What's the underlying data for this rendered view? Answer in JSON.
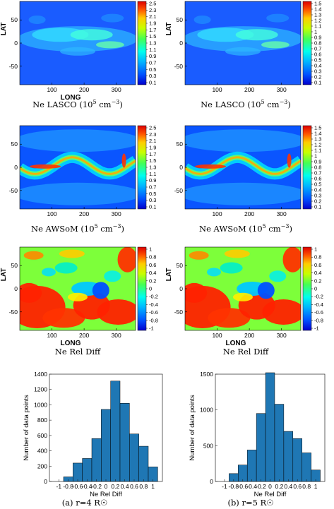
{
  "chart_data": [
    {
      "type": "heatmap",
      "id": "lasco4",
      "xlabel": "LONG",
      "ylabel": "LAT",
      "caption_main": "Ne LASCO",
      "caption_unit": "(10",
      "caption_exp": "5",
      "caption_tail": " cm",
      "caption_exp2": "−3",
      "caption_close": ")",
      "xticks": [
        "100",
        "200",
        "300"
      ],
      "yticks": [
        "50",
        "0",
        "-50"
      ],
      "xlim": [
        0,
        360
      ],
      "ylim": [
        -90,
        90
      ],
      "colorbar": [
        "2.5",
        "2.3",
        "2.1",
        "1.9",
        "1.7",
        "1.5",
        "1.3",
        "1.1",
        "0.9",
        "0.7",
        "0.5",
        "0.3",
        "0.1"
      ]
    },
    {
      "type": "heatmap",
      "id": "lasco5",
      "xlabel": "",
      "ylabel": "LAT",
      "caption_main": "Ne LASCO",
      "caption_unit": "(10",
      "caption_exp": "5",
      "caption_tail": " cm",
      "caption_exp2": "−3",
      "caption_close": ")",
      "xticks": [
        "100",
        "200",
        "300"
      ],
      "yticks": [
        "50",
        "0",
        "-50"
      ],
      "xlim": [
        0,
        360
      ],
      "ylim": [
        -90,
        90
      ],
      "colorbar": [
        "1.5",
        "1.4",
        "1.3",
        "1.2",
        "1.1",
        "1",
        "0.9",
        "0.8",
        "0.7",
        "0.6",
        "0.5",
        "0.4",
        "0.3",
        "0.2",
        "0.1"
      ]
    },
    {
      "type": "heatmap",
      "id": "awsom4",
      "xlabel": "",
      "ylabel": "",
      "caption_main": "Ne AWSoM",
      "caption_unit": "(10",
      "caption_exp": "5",
      "caption_tail": " cm",
      "caption_exp2": "−3",
      "caption_close": ")",
      "xticks": [
        "100",
        "200",
        "300"
      ],
      "yticks": [
        "50",
        "0",
        "-50"
      ],
      "xlim": [
        0,
        360
      ],
      "ylim": [
        -90,
        90
      ],
      "colorbar": [
        "2.5",
        "2.3",
        "2.1",
        "1.9",
        "1.7",
        "1.5",
        "1.3",
        "1.1",
        "0.9",
        "0.7",
        "0.5",
        "0.3",
        "0.1"
      ]
    },
    {
      "type": "heatmap",
      "id": "awsom5",
      "xlabel": "",
      "ylabel": "",
      "caption_main": "Ne AWSoM",
      "caption_unit": "(10",
      "caption_exp": "5",
      "caption_tail": " cm",
      "caption_exp2": "−3",
      "caption_close": ")",
      "xticks": [
        "100",
        "200",
        "300"
      ],
      "yticks": [
        "50",
        "0",
        "-50"
      ],
      "xlim": [
        0,
        360
      ],
      "ylim": [
        -90,
        90
      ],
      "colorbar": [
        "1.5",
        "1.4",
        "1.3",
        "1.2",
        "1.1",
        "1",
        "0.9",
        "0.8",
        "0.7",
        "0.6",
        "0.5",
        "0.4",
        "0.3",
        "0.2",
        "0.1"
      ]
    },
    {
      "type": "heatmap",
      "id": "rel4",
      "xlabel": "LONG",
      "ylabel": "LAT",
      "caption_main": "Ne Rel Diff",
      "xticks": [
        "100",
        "200",
        "300"
      ],
      "yticks": [
        "50",
        "0",
        "-50"
      ],
      "xlim": [
        0,
        360
      ],
      "ylim": [
        -90,
        90
      ],
      "colorbar": [
        "1",
        "0.8",
        "0.6",
        "0.4",
        "0.2",
        "0",
        "-0.2",
        "-0.4",
        "-0.6",
        "-0.8",
        "-1"
      ]
    },
    {
      "type": "heatmap",
      "id": "rel5",
      "xlabel": "LONG",
      "ylabel": "LAT",
      "caption_main": "Ne Rel Diff",
      "xticks": [
        "100",
        "200",
        "300"
      ],
      "yticks": [
        "50",
        "0",
        "-50"
      ],
      "xlim": [
        0,
        360
      ],
      "ylim": [
        -90,
        90
      ],
      "colorbar": [
        "1",
        "0.8",
        "0.6",
        "0.4",
        "0.2",
        "0",
        "-0.2",
        "-0.4",
        "-0.6",
        "-0.8",
        "-1"
      ]
    },
    {
      "type": "bar",
      "id": "hist4",
      "caption": "(a) r=4 R☉",
      "xlabel": "Ne Rel Diff",
      "ylabel": "Number of data points",
      "categories": [
        -0.8,
        -0.6,
        -0.4,
        -0.2,
        0,
        0.2,
        0.4,
        0.6,
        0.8,
        1
      ],
      "values": [
        60,
        240,
        300,
        560,
        940,
        1310,
        1020,
        620,
        460,
        190
      ],
      "xticks": [
        "-1",
        "-0.8",
        "-0.6",
        "-0.4",
        "-0.2",
        "0",
        "0.2",
        "0.4",
        "0.6",
        "0.8",
        "1"
      ],
      "xlim": [
        -1.2,
        1.2
      ],
      "ylim": [
        0,
        1400
      ],
      "yticks": [
        "0",
        "200",
        "400",
        "600",
        "800",
        "1000",
        "1200",
        "1400"
      ],
      "bar_color": "#1f77b4"
    },
    {
      "type": "bar",
      "id": "hist5",
      "caption": "(b) r=5 R☉",
      "xlabel": "Ne Rel Diff",
      "ylabel": "Number of data points",
      "categories": [
        -0.8,
        -0.6,
        -0.4,
        -0.2,
        0,
        0.2,
        0.4,
        0.6,
        0.8,
        1
      ],
      "values": [
        110,
        230,
        440,
        950,
        1520,
        1080,
        700,
        600,
        400,
        160
      ],
      "xticks": [
        "-1",
        "-0.8",
        "-0.6",
        "-0.4",
        "-0.2",
        "0",
        "0.2",
        "0.4",
        "0.6",
        "0.8",
        "1"
      ],
      "xlim": [
        -1.2,
        1.2
      ],
      "ylim": [
        0,
        1500
      ],
      "yticks": [
        "0",
        "500",
        "1000",
        "1500"
      ],
      "bar_color": "#1f77b4"
    }
  ],
  "colors": {
    "jet_low": "#0000ff",
    "jet_high": "#ff0000",
    "bar": "#1f77b4"
  }
}
